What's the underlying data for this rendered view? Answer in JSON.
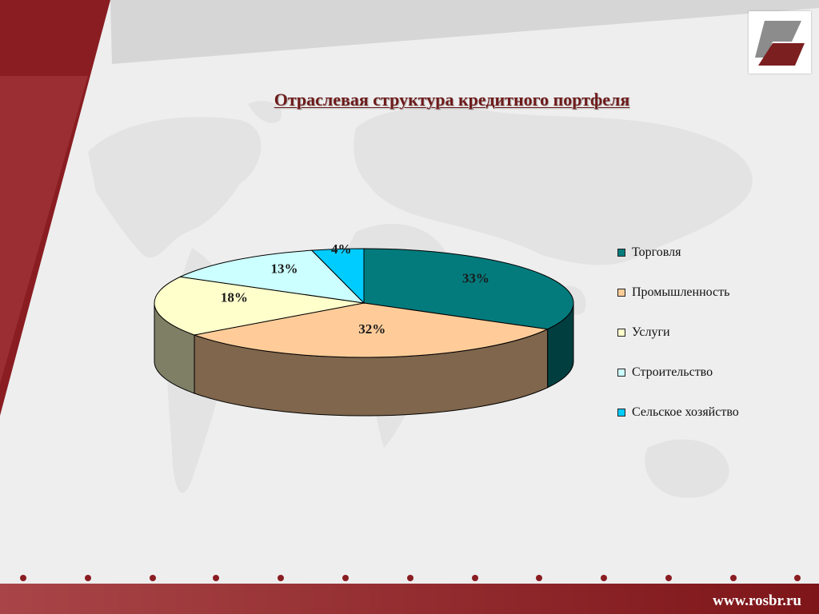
{
  "slide": {
    "title": "Отраслевая структура кредитного портфеля",
    "url": "www.rosbr.ru"
  },
  "colors": {
    "brand": "#8a1d22",
    "brand_light": "#a63a3e"
  },
  "chart_data": {
    "type": "pie",
    "style": "3d",
    "title": "",
    "categories": [
      "Торговля",
      "Промышленность",
      "Услуги",
      "Строительство",
      "Сельское хозяйство"
    ],
    "values": [
      33,
      32,
      18,
      13,
      4
    ],
    "labels": [
      "33%",
      "32%",
      "18%",
      "13%",
      "4%"
    ],
    "colors": [
      "#037b7d",
      "#ffcc99",
      "#ffffcc",
      "#ccffff",
      "#00ccff"
    ],
    "side_colors": [
      "#013e3f",
      "#7f664c",
      "#7f7f66",
      "#667f7f",
      "#00667f"
    ],
    "legend_position": "right"
  }
}
